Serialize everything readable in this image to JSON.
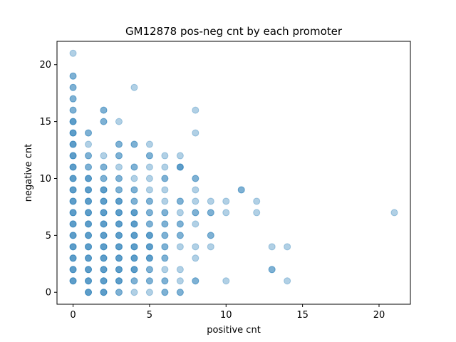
{
  "chart_data": {
    "type": "scatter",
    "title": "GM12878 pos-neg cnt by each promoter",
    "xlabel": "positive cnt",
    "ylabel": "negative cnt",
    "xlim": [
      -1.05,
      22.05
    ],
    "ylim": [
      -1.05,
      22.05
    ],
    "xticks": [
      0,
      5,
      10,
      15,
      20
    ],
    "yticks": [
      0,
      5,
      10,
      15,
      20
    ],
    "grid": false,
    "marker_color": "#1f77b4",
    "marker_alpha": 0.35,
    "points": [
      [
        0,
        1
      ],
      [
        0,
        1
      ],
      [
        0,
        1
      ],
      [
        0,
        2
      ],
      [
        0,
        2
      ],
      [
        0,
        2
      ],
      [
        0,
        3
      ],
      [
        0,
        3
      ],
      [
        0,
        3
      ],
      [
        0,
        4
      ],
      [
        0,
        4
      ],
      [
        0,
        4
      ],
      [
        0,
        5
      ],
      [
        0,
        5
      ],
      [
        0,
        5
      ],
      [
        0,
        6
      ],
      [
        0,
        6
      ],
      [
        0,
        6
      ],
      [
        0,
        7
      ],
      [
        0,
        7
      ],
      [
        0,
        7
      ],
      [
        0,
        8
      ],
      [
        0,
        8
      ],
      [
        0,
        8
      ],
      [
        0,
        9
      ],
      [
        0,
        9
      ],
      [
        0,
        9
      ],
      [
        0,
        10
      ],
      [
        0,
        10
      ],
      [
        0,
        10
      ],
      [
        0,
        11
      ],
      [
        0,
        11
      ],
      [
        0,
        11
      ],
      [
        0,
        12
      ],
      [
        0,
        12
      ],
      [
        0,
        12
      ],
      [
        0,
        13
      ],
      [
        0,
        13
      ],
      [
        0,
        13
      ],
      [
        0,
        14
      ],
      [
        0,
        14
      ],
      [
        0,
        14
      ],
      [
        0,
        15
      ],
      [
        0,
        15
      ],
      [
        0,
        15
      ],
      [
        0,
        16
      ],
      [
        0,
        16
      ],
      [
        0,
        17
      ],
      [
        0,
        17
      ],
      [
        0,
        18
      ],
      [
        0,
        18
      ],
      [
        0,
        19
      ],
      [
        0,
        19
      ],
      [
        0,
        21
      ],
      [
        1,
        0
      ],
      [
        1,
        0
      ],
      [
        1,
        0
      ],
      [
        1,
        1
      ],
      [
        1,
        1
      ],
      [
        1,
        1
      ],
      [
        1,
        2
      ],
      [
        1,
        2
      ],
      [
        1,
        2
      ],
      [
        1,
        3
      ],
      [
        1,
        3
      ],
      [
        1,
        3
      ],
      [
        1,
        4
      ],
      [
        1,
        4
      ],
      [
        1,
        4
      ],
      [
        1,
        5
      ],
      [
        1,
        5
      ],
      [
        1,
        5
      ],
      [
        1,
        6
      ],
      [
        1,
        6
      ],
      [
        1,
        6
      ],
      [
        1,
        7
      ],
      [
        1,
        7
      ],
      [
        1,
        7
      ],
      [
        1,
        8
      ],
      [
        1,
        8
      ],
      [
        1,
        8
      ],
      [
        1,
        9
      ],
      [
        1,
        9
      ],
      [
        1,
        9
      ],
      [
        1,
        10
      ],
      [
        1,
        10
      ],
      [
        1,
        10
      ],
      [
        1,
        11
      ],
      [
        1,
        11
      ],
      [
        1,
        12
      ],
      [
        1,
        12
      ],
      [
        1,
        13
      ],
      [
        1,
        14
      ],
      [
        1,
        14
      ],
      [
        2,
        0
      ],
      [
        2,
        0
      ],
      [
        2,
        0
      ],
      [
        2,
        1
      ],
      [
        2,
        1
      ],
      [
        2,
        1
      ],
      [
        2,
        2
      ],
      [
        2,
        2
      ],
      [
        2,
        2
      ],
      [
        2,
        3
      ],
      [
        2,
        3
      ],
      [
        2,
        3
      ],
      [
        2,
        4
      ],
      [
        2,
        4
      ],
      [
        2,
        4
      ],
      [
        2,
        5
      ],
      [
        2,
        5
      ],
      [
        2,
        5
      ],
      [
        2,
        6
      ],
      [
        2,
        6
      ],
      [
        2,
        6
      ],
      [
        2,
        7
      ],
      [
        2,
        7
      ],
      [
        2,
        7
      ],
      [
        2,
        8
      ],
      [
        2,
        8
      ],
      [
        2,
        8
      ],
      [
        2,
        9
      ],
      [
        2,
        9
      ],
      [
        2,
        9
      ],
      [
        2,
        10
      ],
      [
        2,
        10
      ],
      [
        2,
        11
      ],
      [
        2,
        11
      ],
      [
        2,
        12
      ],
      [
        2,
        15
      ],
      [
        2,
        15
      ],
      [
        2,
        16
      ],
      [
        2,
        16
      ],
      [
        3,
        0
      ],
      [
        3,
        0
      ],
      [
        3,
        1
      ],
      [
        3,
        1
      ],
      [
        3,
        1
      ],
      [
        3,
        2
      ],
      [
        3,
        2
      ],
      [
        3,
        2
      ],
      [
        3,
        3
      ],
      [
        3,
        3
      ],
      [
        3,
        3
      ],
      [
        3,
        4
      ],
      [
        3,
        4
      ],
      [
        3,
        4
      ],
      [
        3,
        5
      ],
      [
        3,
        5
      ],
      [
        3,
        5
      ],
      [
        3,
        6
      ],
      [
        3,
        6
      ],
      [
        3,
        6
      ],
      [
        3,
        7
      ],
      [
        3,
        7
      ],
      [
        3,
        7
      ],
      [
        3,
        8
      ],
      [
        3,
        8
      ],
      [
        3,
        8
      ],
      [
        3,
        9
      ],
      [
        3,
        9
      ],
      [
        3,
        10
      ],
      [
        3,
        10
      ],
      [
        3,
        11
      ],
      [
        3,
        12
      ],
      [
        3,
        12
      ],
      [
        3,
        13
      ],
      [
        3,
        13
      ],
      [
        3,
        15
      ],
      [
        4,
        0
      ],
      [
        4,
        1
      ],
      [
        4,
        1
      ],
      [
        4,
        2
      ],
      [
        4,
        2
      ],
      [
        4,
        2
      ],
      [
        4,
        3
      ],
      [
        4,
        3
      ],
      [
        4,
        3
      ],
      [
        4,
        4
      ],
      [
        4,
        4
      ],
      [
        4,
        4
      ],
      [
        4,
        5
      ],
      [
        4,
        5
      ],
      [
        4,
        5
      ],
      [
        4,
        6
      ],
      [
        4,
        6
      ],
      [
        4,
        6
      ],
      [
        4,
        7
      ],
      [
        4,
        7
      ],
      [
        4,
        7
      ],
      [
        4,
        8
      ],
      [
        4,
        8
      ],
      [
        4,
        9
      ],
      [
        4,
        9
      ],
      [
        4,
        10
      ],
      [
        4,
        11
      ],
      [
        4,
        11
      ],
      [
        4,
        13
      ],
      [
        4,
        13
      ],
      [
        4,
        18
      ],
      [
        5,
        0
      ],
      [
        5,
        1
      ],
      [
        5,
        1
      ],
      [
        5,
        2
      ],
      [
        5,
        2
      ],
      [
        5,
        3
      ],
      [
        5,
        3
      ],
      [
        5,
        3
      ],
      [
        5,
        4
      ],
      [
        5,
        4
      ],
      [
        5,
        4
      ],
      [
        5,
        5
      ],
      [
        5,
        5
      ],
      [
        5,
        5
      ],
      [
        5,
        6
      ],
      [
        5,
        6
      ],
      [
        5,
        7
      ],
      [
        5,
        7
      ],
      [
        5,
        8
      ],
      [
        5,
        8
      ],
      [
        5,
        9
      ],
      [
        5,
        10
      ],
      [
        5,
        11
      ],
      [
        5,
        12
      ],
      [
        5,
        12
      ],
      [
        5,
        13
      ],
      [
        6,
        0
      ],
      [
        6,
        0
      ],
      [
        6,
        1
      ],
      [
        6,
        1
      ],
      [
        6,
        2
      ],
      [
        6,
        3
      ],
      [
        6,
        3
      ],
      [
        6,
        4
      ],
      [
        6,
        4
      ],
      [
        6,
        5
      ],
      [
        6,
        5
      ],
      [
        6,
        6
      ],
      [
        6,
        6
      ],
      [
        6,
        7
      ],
      [
        6,
        7
      ],
      [
        6,
        8
      ],
      [
        6,
        9
      ],
      [
        6,
        10
      ],
      [
        6,
        10
      ],
      [
        6,
        11
      ],
      [
        6,
        12
      ],
      [
        7,
        0
      ],
      [
        7,
        0
      ],
      [
        7,
        1
      ],
      [
        7,
        2
      ],
      [
        7,
        4
      ],
      [
        7,
        5
      ],
      [
        7,
        5
      ],
      [
        7,
        6
      ],
      [
        7,
        6
      ],
      [
        7,
        7
      ],
      [
        7,
        8
      ],
      [
        7,
        8
      ],
      [
        7,
        11
      ],
      [
        7,
        11
      ],
      [
        7,
        11
      ],
      [
        7,
        12
      ],
      [
        8,
        1
      ],
      [
        8,
        1
      ],
      [
        8,
        3
      ],
      [
        8,
        4
      ],
      [
        8,
        6
      ],
      [
        8,
        7
      ],
      [
        8,
        7
      ],
      [
        8,
        8
      ],
      [
        8,
        9
      ],
      [
        8,
        10
      ],
      [
        8,
        10
      ],
      [
        8,
        14
      ],
      [
        8,
        16
      ],
      [
        9,
        4
      ],
      [
        9,
        5
      ],
      [
        9,
        5
      ],
      [
        9,
        7
      ],
      [
        9,
        7
      ],
      [
        9,
        8
      ],
      [
        10,
        1
      ],
      [
        10,
        7
      ],
      [
        10,
        8
      ],
      [
        11,
        9
      ],
      [
        11,
        9
      ],
      [
        12,
        7
      ],
      [
        12,
        8
      ],
      [
        13,
        2
      ],
      [
        13,
        2
      ],
      [
        13,
        4
      ],
      [
        14,
        1
      ],
      [
        14,
        4
      ],
      [
        21,
        7
      ]
    ]
  }
}
